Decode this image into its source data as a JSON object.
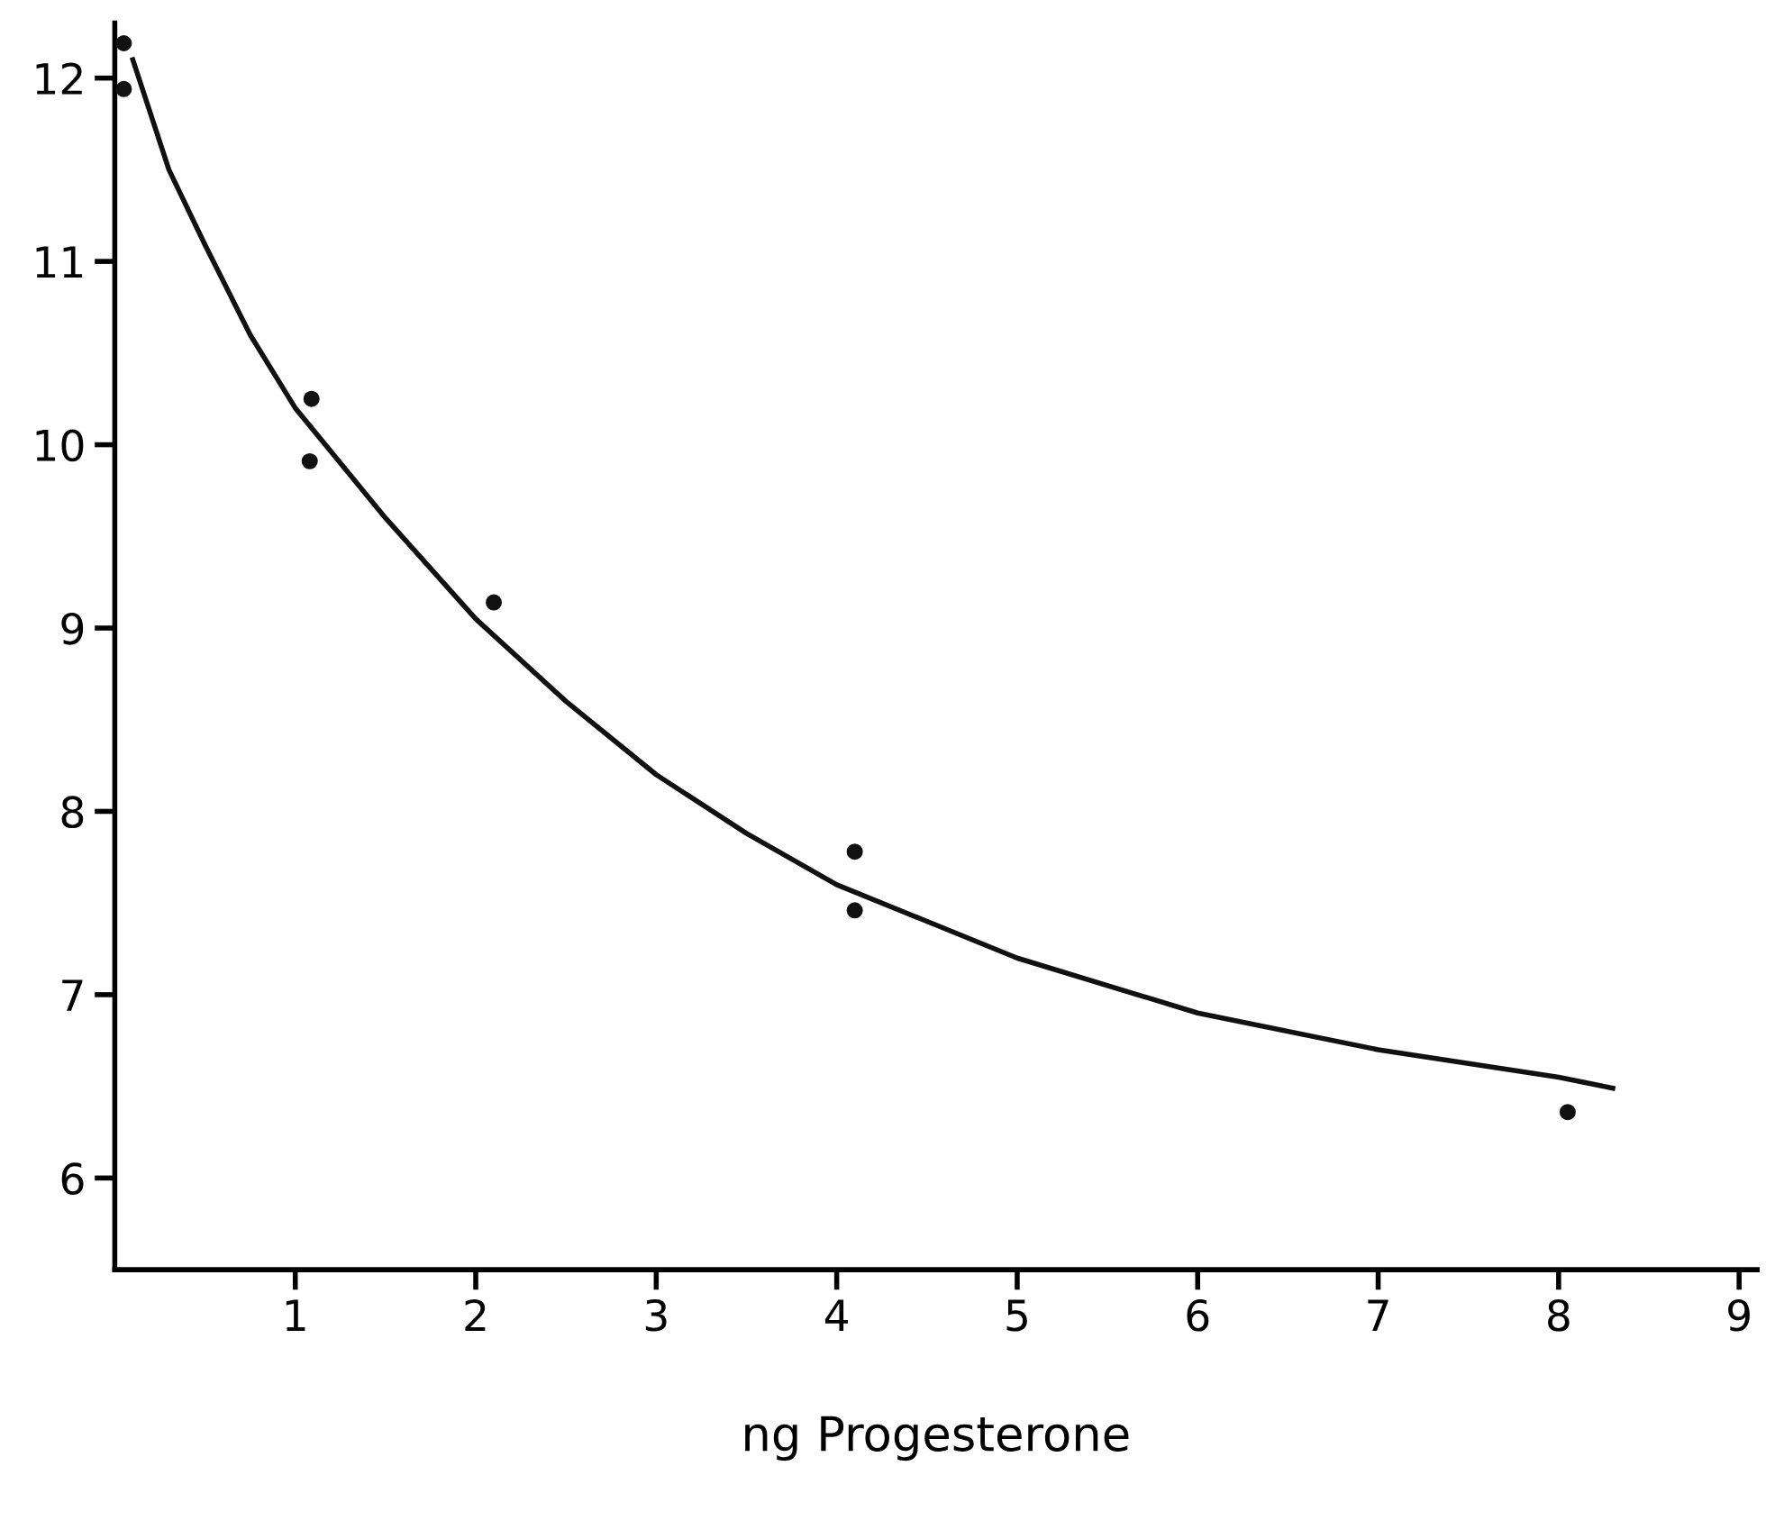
{
  "chart_data": {
    "type": "scatter",
    "xlabel": "ng Progesterone",
    "xlim": [
      0,
      9.1
    ],
    "ylim": [
      5.5,
      12.3
    ],
    "xticks": [
      1,
      2,
      3,
      4,
      5,
      6,
      7,
      8,
      9
    ],
    "yticks": [
      6,
      7,
      8,
      9,
      10,
      11,
      12
    ],
    "grid": false,
    "legend": false,
    "series": [
      {
        "marker": "circle",
        "color": "#111111",
        "x": [
          0.05,
          0.05,
          1.09,
          1.08,
          2.1,
          4.1,
          4.1,
          8.05
        ],
        "values": [
          12.19,
          11.94,
          10.25,
          9.91,
          9.14,
          7.78,
          7.46,
          6.36
        ]
      },
      {
        "type": "line",
        "marker": "none",
        "color": "#111111",
        "line_style": "solid",
        "x": [
          0.1,
          0.3,
          0.5,
          0.75,
          1,
          1.5,
          2,
          2.5,
          3,
          3.5,
          4,
          5,
          6,
          7,
          8,
          8.3
        ],
        "values": [
          12.1,
          11.5,
          11.09,
          10.6,
          10.2,
          9.6,
          9.05,
          8.6,
          8.2,
          7.88,
          7.6,
          7.2,
          6.9,
          6.7,
          6.55,
          6.49
        ]
      }
    ]
  }
}
